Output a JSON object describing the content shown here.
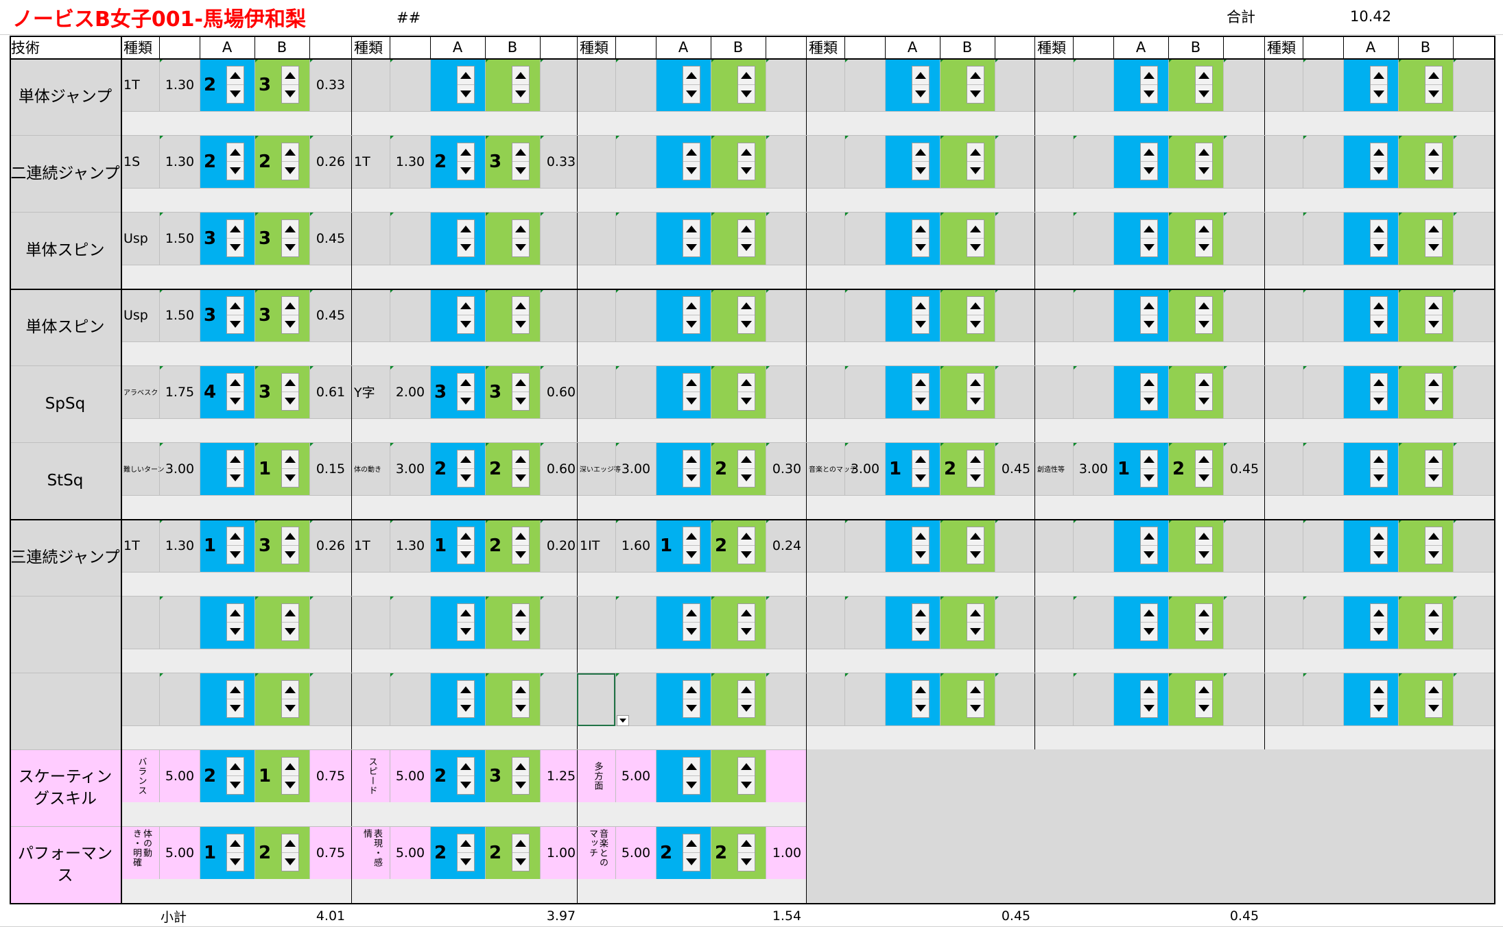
{
  "title": "ノービスB女子001-馬場伊和梨",
  "hash_mark": "##",
  "total_label": "合計",
  "total_value": "10.42",
  "col_headers": {
    "skill": "技術",
    "type": "種類",
    "a": "A",
    "b": "B"
  },
  "categories": [
    "単体ジャンプ",
    "二連続ジャンプ",
    "単体スピン",
    "単体スピン",
    "SpSq",
    "StSq",
    "三連続ジャンプ",
    "",
    ""
  ],
  "pcs_categories": [
    "スケーティングスキル",
    "パフォーマンス"
  ],
  "rows": [
    [
      {
        "type": "1T",
        "base": "1.30",
        "a": "2",
        "b": "3",
        "val": "0.33"
      },
      {
        "type": "",
        "base": "",
        "a": "",
        "b": "",
        "val": ""
      },
      {
        "type": "",
        "base": "",
        "a": "",
        "b": "",
        "val": ""
      },
      {
        "type": "",
        "base": "",
        "a": "",
        "b": "",
        "val": ""
      },
      {
        "type": "",
        "base": "",
        "a": "",
        "b": "",
        "val": ""
      },
      {
        "type": "",
        "base": "",
        "a": "",
        "b": "",
        "val": ""
      }
    ],
    [
      {
        "type": "1S",
        "base": "1.30",
        "a": "2",
        "b": "2",
        "val": "0.26"
      },
      {
        "type": "1T",
        "base": "1.30",
        "a": "2",
        "b": "3",
        "val": "0.33"
      },
      {
        "type": "",
        "base": "",
        "a": "",
        "b": "",
        "val": ""
      },
      {
        "type": "",
        "base": "",
        "a": "",
        "b": "",
        "val": ""
      },
      {
        "type": "",
        "base": "",
        "a": "",
        "b": "",
        "val": ""
      },
      {
        "type": "",
        "base": "",
        "a": "",
        "b": "",
        "val": ""
      }
    ],
    [
      {
        "type": "Usp",
        "base": "1.50",
        "a": "3",
        "b": "3",
        "val": "0.45"
      },
      {
        "type": "",
        "base": "",
        "a": "",
        "b": "",
        "val": ""
      },
      {
        "type": "",
        "base": "",
        "a": "",
        "b": "",
        "val": ""
      },
      {
        "type": "",
        "base": "",
        "a": "",
        "b": "",
        "val": ""
      },
      {
        "type": "",
        "base": "",
        "a": "",
        "b": "",
        "val": ""
      },
      {
        "type": "",
        "base": "",
        "a": "",
        "b": "",
        "val": ""
      }
    ],
    [
      {
        "type": "Usp",
        "base": "1.50",
        "a": "3",
        "b": "3",
        "val": "0.45"
      },
      {
        "type": "",
        "base": "",
        "a": "",
        "b": "",
        "val": ""
      },
      {
        "type": "",
        "base": "",
        "a": "",
        "b": "",
        "val": ""
      },
      {
        "type": "",
        "base": "",
        "a": "",
        "b": "",
        "val": ""
      },
      {
        "type": "",
        "base": "",
        "a": "",
        "b": "",
        "val": ""
      },
      {
        "type": "",
        "base": "",
        "a": "",
        "b": "",
        "val": ""
      }
    ],
    [
      {
        "type": "アラベスク",
        "base": "1.75",
        "a": "4",
        "b": "3",
        "val": "0.61",
        "tiny": true
      },
      {
        "type": "Y字",
        "base": "2.00",
        "a": "3",
        "b": "3",
        "val": "0.60"
      },
      {
        "type": "",
        "base": "",
        "a": "",
        "b": "",
        "val": ""
      },
      {
        "type": "",
        "base": "",
        "a": "",
        "b": "",
        "val": ""
      },
      {
        "type": "",
        "base": "",
        "a": "",
        "b": "",
        "val": ""
      },
      {
        "type": "",
        "base": "",
        "a": "",
        "b": "",
        "val": ""
      }
    ],
    [
      {
        "type": "難しいターン",
        "base": "3.00",
        "a": "",
        "b": "1",
        "val": "0.15",
        "tiny": true
      },
      {
        "type": "体の動き",
        "base": "3.00",
        "a": "2",
        "b": "2",
        "val": "0.60",
        "tiny": true
      },
      {
        "type": "深いエッジ等",
        "base": "3.00",
        "a": "",
        "b": "2",
        "val": "0.30",
        "tiny": true
      },
      {
        "type": "音楽とのマッチ",
        "base": "3.00",
        "a": "1",
        "b": "2",
        "val": "0.45",
        "tiny": true
      },
      {
        "type": "創造性等",
        "base": "3.00",
        "a": "1",
        "b": "2",
        "val": "0.45",
        "tiny": true
      },
      {
        "type": "",
        "base": "",
        "a": "",
        "b": "",
        "val": ""
      }
    ],
    [
      {
        "type": "1T",
        "base": "1.30",
        "a": "1",
        "b": "3",
        "val": "0.26"
      },
      {
        "type": "1T",
        "base": "1.30",
        "a": "1",
        "b": "2",
        "val": "0.20"
      },
      {
        "type": "1IT",
        "base": "1.60",
        "a": "1",
        "b": "2",
        "val": "0.24"
      },
      {
        "type": "",
        "base": "",
        "a": "",
        "b": "",
        "val": ""
      },
      {
        "type": "",
        "base": "",
        "a": "",
        "b": "",
        "val": ""
      },
      {
        "type": "",
        "base": "",
        "a": "",
        "b": "",
        "val": ""
      }
    ],
    [
      {
        "type": "",
        "base": "",
        "a": "",
        "b": "",
        "val": ""
      },
      {
        "type": "",
        "base": "",
        "a": "",
        "b": "",
        "val": ""
      },
      {
        "type": "",
        "base": "",
        "a": "",
        "b": "",
        "val": ""
      },
      {
        "type": "",
        "base": "",
        "a": "",
        "b": "",
        "val": ""
      },
      {
        "type": "",
        "base": "",
        "a": "",
        "b": "",
        "val": ""
      },
      {
        "type": "",
        "base": "",
        "a": "",
        "b": "",
        "val": ""
      }
    ],
    [
      {
        "type": "",
        "base": "",
        "a": "",
        "b": "",
        "val": ""
      },
      {
        "type": "",
        "base": "",
        "a": "",
        "b": "",
        "val": ""
      },
      {
        "type": "",
        "base": "",
        "a": "",
        "b": "",
        "val": ""
      },
      {
        "type": "",
        "base": "",
        "a": "",
        "b": "",
        "val": ""
      },
      {
        "type": "",
        "base": "",
        "a": "",
        "b": "",
        "val": ""
      },
      {
        "type": "",
        "base": "",
        "a": "",
        "b": "",
        "val": ""
      }
    ]
  ],
  "pcs_rows": [
    [
      {
        "type": "バランス",
        "base": "5.00",
        "a": "2",
        "b": "1",
        "val": "0.75"
      },
      {
        "type": "スピード",
        "base": "5.00",
        "a": "2",
        "b": "3",
        "val": "1.25"
      },
      {
        "type": "多方面",
        "base": "5.00",
        "a": "",
        "b": "",
        "val": ""
      }
    ],
    [
      {
        "type": "体の動き・明確",
        "base": "5.00",
        "a": "1",
        "b": "2",
        "val": "0.75"
      },
      {
        "type": "表現・感情",
        "base": "5.00",
        "a": "2",
        "b": "2",
        "val": "1.00"
      },
      {
        "type": "音楽とのマッチ",
        "base": "5.00",
        "a": "2",
        "b": "2",
        "val": "1.00"
      }
    ]
  ],
  "subtotal_label": "小計",
  "subtotals": [
    "4.01",
    "3.97",
    "1.54",
    "0.45",
    "0.45",
    ""
  ]
}
